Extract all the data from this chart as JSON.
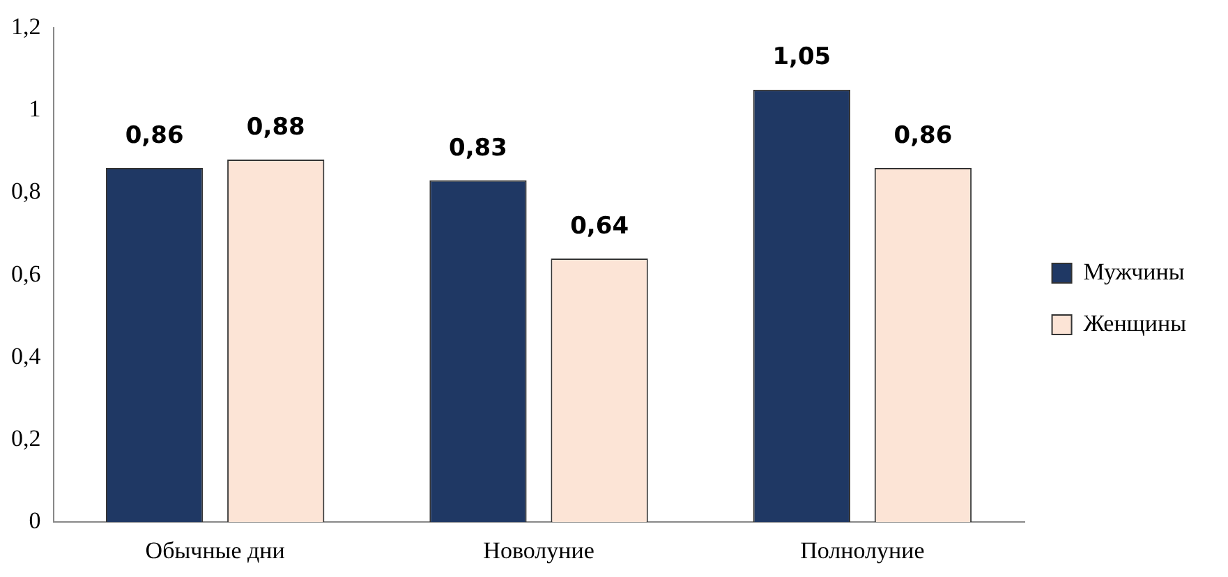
{
  "chart_data": {
    "type": "bar",
    "categories": [
      "Обычные дни",
      "Новолуние",
      "Полнолуние"
    ],
    "series": [
      {
        "name": "Мужчины",
        "color": "#1f3864",
        "values": [
          0.86,
          0.83,
          1.05
        ],
        "value_labels": [
          "0,86",
          "0,83",
          "1,05"
        ]
      },
      {
        "name": "Женщины",
        "color": "#fce4d6",
        "values": [
          0.88,
          0.64,
          0.86
        ],
        "value_labels": [
          "0,88",
          "0,64",
          "0,86"
        ]
      }
    ],
    "ylim": [
      0,
      1.2
    ],
    "yticks": [
      0,
      {
        "value": 0.2,
        "label": "0,2"
      },
      {
        "value": 0.4,
        "label": "0,4"
      },
      {
        "value": 0.6,
        "label": "0,6"
      },
      {
        "value": 0.8,
        "label": "0,8"
      },
      1,
      {
        "value": 1.2,
        "label": "1,2"
      }
    ],
    "grid": false,
    "legend": "right"
  }
}
